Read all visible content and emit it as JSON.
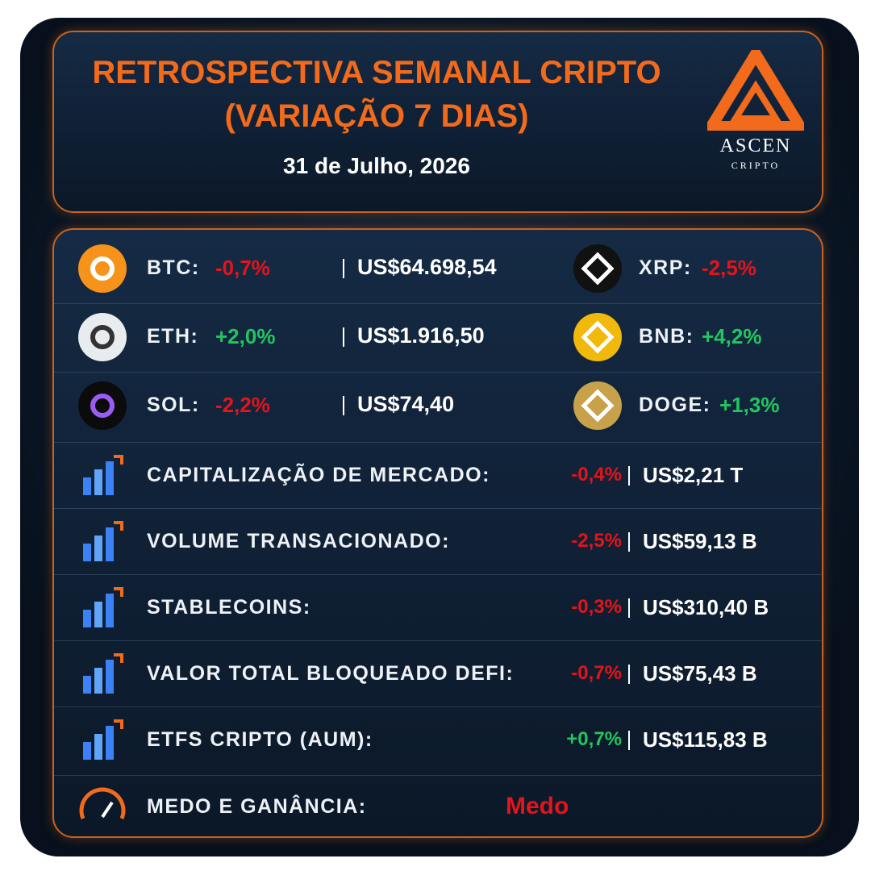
{
  "header": {
    "title_lines": [
      "RETROSPECTIVA SEMANAL CRIPTO",
      "(VARIAÇÃO 7 DIAS)"
    ],
    "date": "31 de Julho, 2026",
    "logo": {
      "name": "ASCEN",
      "tagline": "CRIPTO"
    }
  },
  "coins": [
    {
      "label": "BTC:",
      "change": "-0,7%",
      "price": "US$64.698,54",
      "pair_label": "XRP:",
      "pair_change": "-2,5%"
    },
    {
      "label": "ETH:",
      "change": "+2,0%",
      "price": "US$1.916,50",
      "pair_label": "BNB:",
      "pair_change": "+4,2%"
    },
    {
      "label": "SOL:",
      "change": "-2,2%",
      "price": "US$74,40",
      "pair_label": "DOGE:",
      "pair_change": "+1,3%"
    }
  ],
  "metrics": [
    {
      "label": "CAPITALIZAÇÃO DE MERCADO:",
      "change": "-0,4%",
      "value": "US$2,21 T"
    },
    {
      "label": "VOLUME TRANSACIONADO:",
      "change": "-2,5%",
      "value": "US$59,13 B"
    },
    {
      "label": "STABLECOINS:",
      "change": "-0,3%",
      "value": "US$310,40 B"
    },
    {
      "label": "VALOR TOTAL BLOQUEADO DEFI:",
      "change": "-0,7%",
      "value": "US$75,43 B"
    },
    {
      "label": "ETFS CRIPTO (AUM):",
      "change": "+0,7%",
      "value": "US$115,83 B"
    }
  ],
  "sentiment": {
    "label": "MEDO E GANÂNCIA:",
    "value": "Medo"
  }
}
